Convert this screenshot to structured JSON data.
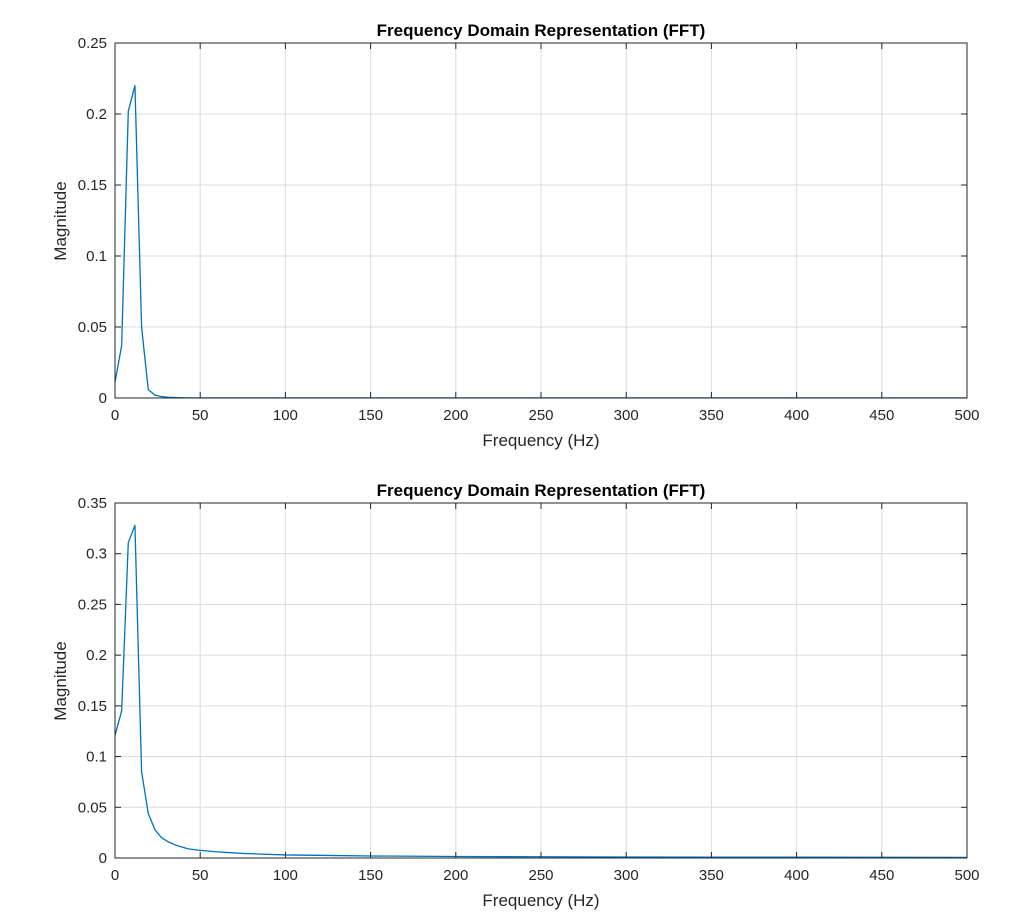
{
  "chart_data": [
    {
      "type": "line",
      "title": "Frequency Domain Representation (FFT)",
      "xlabel": "Frequency (Hz)",
      "ylabel": "Magnitude",
      "xlim": [
        0,
        500
      ],
      "ylim": [
        0,
        0.25
      ],
      "xticks": [
        0,
        50,
        100,
        150,
        200,
        250,
        300,
        350,
        400,
        450,
        500
      ],
      "xtick_labels": [
        "0",
        "50",
        "100",
        "150",
        "200",
        "250",
        "300",
        "350",
        "400",
        "450",
        "500"
      ],
      "yticks": [
        0,
        0.05,
        0.1,
        0.15,
        0.2,
        0.25
      ],
      "ytick_labels": [
        "0",
        "0.05",
        "0.1",
        "0.15",
        "0.2",
        "0.25"
      ],
      "grid": true,
      "color": "#0072bd",
      "x": [
        0,
        3.9,
        7.8,
        11.7,
        15.6,
        19.5,
        23.4,
        27.3,
        31.2,
        35.1,
        39,
        43,
        50,
        100,
        150,
        200,
        250,
        300,
        350,
        400,
        450,
        500
      ],
      "y": [
        0.011,
        0.037,
        0.202,
        0.22,
        0.05,
        0.006,
        0.002,
        0.001,
        0.0005,
        0.0003,
        0.0002,
        0.0001,
        0.0001,
        0.0001,
        0.0001,
        0.0001,
        0.0001,
        0.0001,
        0.0001,
        0.0001,
        0.0001,
        0.0001
      ]
    },
    {
      "type": "line",
      "title": "Frequency Domain Representation (FFT)",
      "xlabel": "Frequency (Hz)",
      "ylabel": "Magnitude",
      "xlim": [
        0,
        500
      ],
      "ylim": [
        0,
        0.35
      ],
      "xticks": [
        0,
        50,
        100,
        150,
        200,
        250,
        300,
        350,
        400,
        450,
        500
      ],
      "xtick_labels": [
        "0",
        "50",
        "100",
        "150",
        "200",
        "250",
        "300",
        "350",
        "400",
        "450",
        "500"
      ],
      "yticks": [
        0,
        0.05,
        0.1,
        0.15,
        0.2,
        0.25,
        0.3,
        0.35
      ],
      "ytick_labels": [
        "0",
        "0.05",
        "0.1",
        "0.15",
        "0.2",
        "0.25",
        "0.3",
        "0.35"
      ],
      "grid": true,
      "color": "#0072bd",
      "x": [
        0,
        3.9,
        7.8,
        11.7,
        15.6,
        19.5,
        23.4,
        27.3,
        31.2,
        35.1,
        39,
        43,
        50,
        60,
        75,
        100,
        125,
        150,
        200,
        250,
        300,
        350,
        400,
        450,
        500
      ],
      "y": [
        0.121,
        0.145,
        0.311,
        0.328,
        0.085,
        0.044,
        0.028,
        0.02,
        0.016,
        0.013,
        0.011,
        0.009,
        0.0075,
        0.006,
        0.0045,
        0.003,
        0.0025,
        0.002,
        0.0015,
        0.0012,
        0.001,
        0.0009,
        0.0008,
        0.0007,
        0.0006
      ]
    }
  ]
}
